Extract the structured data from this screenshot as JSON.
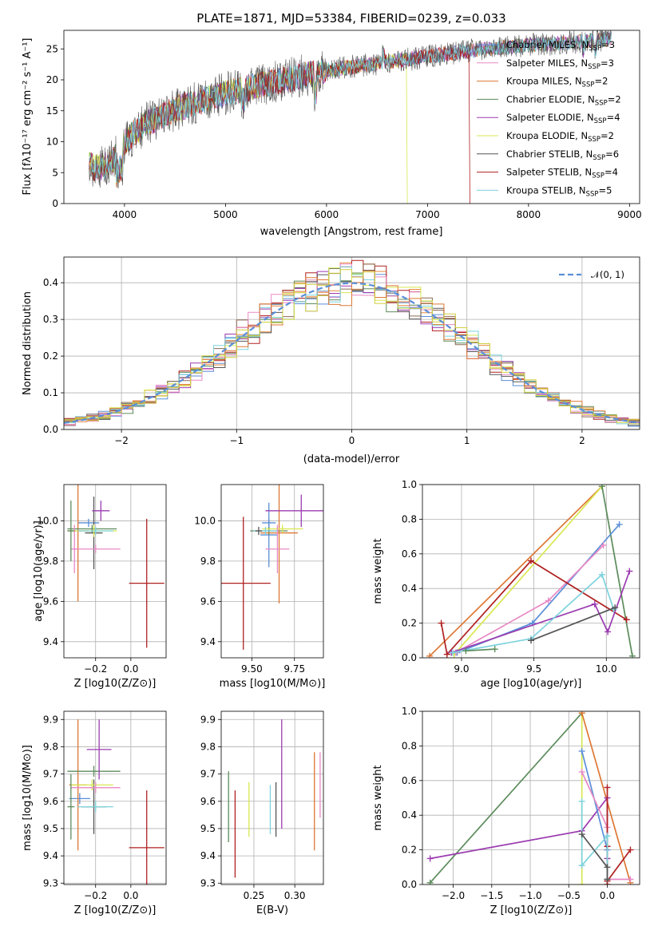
{
  "colors": [
    "#5a8ed8",
    "#e88a3a",
    "#5c8c5c",
    "#b02020",
    "#9b3bb0",
    "#8c6a55",
    "#e88ac5",
    "#555555",
    "#d8e850",
    "#7dd3dd",
    "#dd7733",
    "#cfcf40"
  ],
  "chart_data": [
    {
      "id": "spectrum",
      "type": "line",
      "title": "PLATE=1871, MJD=53384, FIBERID=0239, z=0.033",
      "xlabel": "wavelength [Angstrom, rest frame]",
      "ylabel": "Flux [fλ10⁻¹⁷ erg cm⁻² s⁻¹ A⁻¹]",
      "xlim": [
        3400,
        9100
      ],
      "ylim": [
        0,
        28
      ],
      "xticks": [
        "4000",
        "5000",
        "6000",
        "7000",
        "8000",
        "9000"
      ],
      "yticks": [
        "0",
        "5",
        "10",
        "15",
        "20",
        "25"
      ],
      "grid": false,
      "legend_position": "upper-right",
      "series": [
        {
          "name": "Chabrier MILES, N_SSP=3",
          "color": "#5a8ed8"
        },
        {
          "name": "Salpeter MILES, N_SSP=3",
          "color": "#e88ac5"
        },
        {
          "name": "Kroupa MILES, N_SSP=2",
          "color": "#dd7733"
        },
        {
          "name": "Chabrier ELODIE, N_SSP=2",
          "color": "#5c8c5c"
        },
        {
          "name": "Salpeter ELODIE, N_SSP=4",
          "color": "#9b3bb0"
        },
        {
          "name": "Kroupa ELODIE, N_SSP=2",
          "color": "#d8e850"
        },
        {
          "name": "Chabrier STELIB, N_SSP=6",
          "color": "#555555"
        },
        {
          "name": "Salpeter STELIB, N_SSP=4",
          "color": "#b02020"
        },
        {
          "name": "Kroupa STELIB, N_SSP=5",
          "color": "#7dd3dd"
        }
      ],
      "continuum": {
        "x": [
          3650,
          3700,
          3800,
          3900,
          4000,
          4100,
          4200,
          4400,
          4600,
          4800,
          5000,
          5200,
          5400,
          5600,
          5800,
          6000,
          6200,
          6400,
          6600,
          6800,
          7000,
          7200,
          7400,
          7600,
          7800,
          8000,
          8200,
          8400,
          8600,
          8800
        ],
        "y": [
          6.5,
          5.8,
          6,
          7.2,
          9.8,
          11.5,
          12.8,
          14.5,
          15.8,
          16.8,
          17.8,
          18.6,
          19.4,
          20,
          20.8,
          21.5,
          22,
          22.4,
          22.9,
          23.3,
          23.8,
          24.2,
          24.6,
          25,
          25.3,
          25.6,
          25.8,
          26,
          26.3,
          26.6
        ]
      },
      "dropouts": [
        {
          "series": "Kroupa ELODIE, N_SSP=2",
          "x": 6800
        },
        {
          "series": "Salpeter STELIB, N_SSP=4",
          "x": 7420
        }
      ]
    },
    {
      "id": "residuals",
      "type": "step-histogram",
      "xlabel": "(data-model)/error",
      "ylabel": "Normed distribution",
      "xlim": [
        -2.5,
        2.5
      ],
      "ylim": [
        0,
        0.47
      ],
      "xticks": [
        "−2",
        "−1",
        "0",
        "1",
        "2"
      ],
      "yticks": [
        "0.0",
        "0.1",
        "0.2",
        "0.3",
        "0.4"
      ],
      "grid": true,
      "legend": [
        {
          "name": "𝒩(0, 1)",
          "style": "dashed",
          "color": "#5a8ed8"
        }
      ],
      "reference_curve": {
        "type": "normal",
        "mean": 0,
        "sigma": 1
      },
      "bin_width": 0.1,
      "n_series": 12
    },
    {
      "id": "age-vs-Z",
      "type": "errorbar",
      "xlabel": "Z [log10(Z/Z⊙)]",
      "ylabel": "age [log10(age/yr)]",
      "xlim": [
        -0.38,
        0.2
      ],
      "ylim": [
        9.32,
        10.18
      ],
      "xticks": [
        {
          "v": -0.2,
          "t": "−0.2"
        },
        {
          "v": 0.0,
          "t": "0.0"
        }
      ],
      "yticks": [
        {
          "v": 9.4,
          "t": "9.4"
        },
        {
          "v": 9.6,
          "t": "9.6"
        },
        {
          "v": 9.8,
          "t": "9.8"
        },
        {
          "v": 10.0,
          "t": "10.0"
        }
      ],
      "points": [
        {
          "x": -0.24,
          "y": 9.99,
          "xerr": 0.06,
          "yerr": 0.02,
          "c": "#5a8ed8"
        },
        {
          "x": -0.3,
          "y": 9.95,
          "xerr": 0.06,
          "yerr": 0.35,
          "c": "#dd7733"
        },
        {
          "x": -0.22,
          "y": 9.96,
          "xerr": 0.14,
          "yerr": 0.02,
          "c": "#5c8c5c"
        },
        {
          "x": -0.21,
          "y": 9.94,
          "xerr": 0.05,
          "yerr": 0.18,
          "c": "#555555"
        },
        {
          "x": -0.17,
          "y": 10.05,
          "xerr": 0.05,
          "yerr": 0.05,
          "c": "#9b3bb0"
        },
        {
          "x": -0.21,
          "y": 9.95,
          "xerr": 0.13,
          "yerr": 0.03,
          "c": "#d8e850"
        },
        {
          "x": -0.2,
          "y": 9.95,
          "xerr": 0.1,
          "yerr": 0.02,
          "c": "#7dd3dd"
        },
        {
          "x": -0.2,
          "y": 9.86,
          "xerr": 0.14,
          "yerr": 0.02,
          "c": "#e88ac5"
        },
        {
          "x": -0.32,
          "y": 9.86,
          "xerr": 0.02,
          "yerr": 0.12,
          "c": "#e88ac5"
        },
        {
          "x": -0.34,
          "y": 9.95,
          "xerr": 0.02,
          "yerr": 0.15,
          "c": "#5c8c5c"
        },
        {
          "x": 0.09,
          "y": 9.69,
          "xerr": 0.1,
          "yerr": 0.32,
          "c": "#b02020"
        }
      ]
    },
    {
      "id": "age-vs-mass",
      "type": "errorbar",
      "xlabel": "mass [log10(M/M⊙)]",
      "ylabel": "",
      "xlim": [
        9.32,
        9.92
      ],
      "ylim": [
        9.32,
        10.18
      ],
      "xticks": [
        {
          "v": 9.5,
          "t": "9.50"
        },
        {
          "v": 9.75,
          "t": "9.75"
        }
      ],
      "yticks": [
        {
          "v": 9.4,
          "t": "9.4"
        },
        {
          "v": 9.6,
          "t": "9.6"
        },
        {
          "v": 9.8,
          "t": "9.8"
        },
        {
          "v": 10.0,
          "t": "10.0"
        }
      ],
      "points": [
        {
          "x": 9.6,
          "y": 9.99,
          "xerr": 0.04,
          "yerr": 0.02,
          "c": "#5a8ed8"
        },
        {
          "x": 9.6,
          "y": 9.93,
          "xerr": 0.05,
          "yerr": 0.16,
          "c": "#5a8ed8"
        },
        {
          "x": 9.6,
          "y": 9.95,
          "xerr": 0.11,
          "yerr": 0.02,
          "c": "#5c8c5c"
        },
        {
          "x": 9.66,
          "y": 9.94,
          "xerr": 0.11,
          "yerr": 0.35,
          "c": "#dd7733"
        },
        {
          "x": 9.79,
          "y": 10.05,
          "xerr": 0.21,
          "yerr": 0.08,
          "c": "#9b3bb0"
        },
        {
          "x": 9.68,
          "y": 9.96,
          "xerr": 0.12,
          "yerr": 0.02,
          "c": "#d8e850"
        },
        {
          "x": 9.58,
          "y": 9.95,
          "xerr": 0.07,
          "yerr": 0.02,
          "c": "#7dd3dd"
        },
        {
          "x": 9.65,
          "y": 9.86,
          "xerr": 0.07,
          "yerr": 0.12,
          "c": "#e88ac5"
        },
        {
          "x": 9.54,
          "y": 9.95,
          "xerr": 0.02,
          "yerr": 0.02,
          "c": "#555555"
        },
        {
          "x": 9.45,
          "y": 9.69,
          "xerr": 0.16,
          "yerr": 0.33,
          "c": "#b02020"
        }
      ]
    },
    {
      "id": "weight-vs-age",
      "type": "line",
      "xlabel": "age [log10(age/yr)]",
      "ylabel": "mass weight",
      "xlim": [
        8.73,
        10.23
      ],
      "ylim": [
        0,
        1
      ],
      "xticks": [
        {
          "v": 9.0,
          "t": "9.0"
        },
        {
          "v": 9.5,
          "t": "9.5"
        },
        {
          "v": 10.0,
          "t": "10.0"
        }
      ],
      "yticks": [
        {
          "v": 0,
          "t": "0.0"
        },
        {
          "v": 0.2,
          "t": "0.2"
        },
        {
          "v": 0.4,
          "t": "0.4"
        },
        {
          "v": 0.6,
          "t": "0.6"
        },
        {
          "v": 0.8,
          "t": "0.8"
        },
        {
          "v": 1.0,
          "t": "1.0"
        }
      ],
      "series": [
        {
          "c": "#dd7733",
          "x": [
            8.78,
            9.97
          ],
          "y": [
            0.01,
            0.99
          ]
        },
        {
          "c": "#d8e850",
          "x": [
            8.95,
            9.97
          ],
          "y": [
            0.02,
            0.99
          ]
        },
        {
          "c": "#5c8c5c",
          "x": [
            9.97,
            10.18
          ],
          "y": [
            0.99,
            0.01
          ]
        },
        {
          "c": "#5a8ed8",
          "x": [
            8.97,
            9.49,
            10.09
          ],
          "y": [
            0.03,
            0.2,
            0.77
          ]
        },
        {
          "c": "#e88ac5",
          "x": [
            8.96,
            9.6,
            9.98
          ],
          "y": [
            0.03,
            0.33,
            0.65
          ]
        },
        {
          "c": "#b02020",
          "x": [
            8.86,
            8.9,
            9.48,
            10.14
          ],
          "y": [
            0.2,
            0.02,
            0.56,
            0.22
          ]
        },
        {
          "c": "#9b3bb0",
          "x": [
            8.93,
            9.92,
            10.01,
            10.16
          ],
          "y": [
            0.03,
            0.31,
            0.15,
            0.5
          ]
        },
        {
          "c": "#7dd3dd",
          "x": [
            8.94,
            9.48,
            9.97,
            10.05
          ],
          "y": [
            0.03,
            0.11,
            0.48,
            0.28
          ]
        },
        {
          "c": "#555555",
          "x": [
            9.48,
            10.06
          ],
          "y": [
            0.1,
            0.29
          ]
        },
        {
          "c": "#5c8c5c",
          "x": [
            9.03,
            9.23
          ],
          "y": [
            0.04,
            0.05
          ]
        }
      ]
    },
    {
      "id": "mass-vs-Z",
      "type": "errorbar",
      "xlabel": "Z [log10(Z/Z⊙)]",
      "ylabel": "mass [log10(M/M⊙)]",
      "xlim": [
        -0.38,
        0.2
      ],
      "ylim": [
        9.295,
        9.93
      ],
      "xticks": [
        {
          "v": -0.2,
          "t": "−0.2"
        },
        {
          "v": 0.0,
          "t": "0.0"
        }
      ],
      "yticks": [
        {
          "v": 9.3,
          "t": "9.3"
        },
        {
          "v": 9.4,
          "t": "9.4"
        },
        {
          "v": 9.5,
          "t": "9.5"
        },
        {
          "v": 9.6,
          "t": "9.6"
        },
        {
          "v": 9.7,
          "t": "9.7"
        },
        {
          "v": 9.8,
          "t": "9.8"
        },
        {
          "v": 9.9,
          "t": "9.9"
        }
      ],
      "points": [
        {
          "x": -0.29,
          "y": 9.61,
          "xerr": 0.06,
          "yerr": 0.02,
          "c": "#5a8ed8"
        },
        {
          "x": -0.3,
          "y": 9.66,
          "xerr": 0.05,
          "yerr": 0.24,
          "c": "#dd7733"
        },
        {
          "x": -0.21,
          "y": 9.71,
          "xerr": 0.15,
          "yerr": 0.02,
          "c": "#5c8c5c"
        },
        {
          "x": -0.21,
          "y": 9.58,
          "xerr": 0.07,
          "yerr": 0.1,
          "c": "#555555"
        },
        {
          "x": -0.18,
          "y": 9.79,
          "xerr": 0.07,
          "yerr": 0.11,
          "c": "#9b3bb0"
        },
        {
          "x": -0.22,
          "y": 9.66,
          "xerr": 0.12,
          "yerr": 0.02,
          "c": "#d8e850"
        },
        {
          "x": -0.2,
          "y": 9.58,
          "xerr": 0.1,
          "yerr": 0.02,
          "c": "#7dd3dd"
        },
        {
          "x": -0.2,
          "y": 9.65,
          "xerr": 0.14,
          "yerr": 0.02,
          "c": "#e88ac5"
        },
        {
          "x": -0.34,
          "y": 9.58,
          "xerr": 0.02,
          "yerr": 0.12,
          "c": "#5c8c5c"
        },
        {
          "x": 0.09,
          "y": 9.43,
          "xerr": 0.1,
          "yerr": 0.21,
          "c": "#b02020"
        }
      ]
    },
    {
      "id": "mass-vs-EBV",
      "type": "errorbar",
      "xlabel": "E(B-V)",
      "ylabel": "",
      "xlim": [
        0.21,
        0.335
      ],
      "ylim": [
        9.295,
        9.93
      ],
      "xticks": [
        {
          "v": 0.25,
          "t": "0.25"
        },
        {
          "v": 0.3,
          "t": "0.30"
        }
      ],
      "yticks": [
        {
          "v": 9.3,
          "t": "9.3"
        },
        {
          "v": 9.4,
          "t": "9.4"
        },
        {
          "v": 9.5,
          "t": "9.5"
        },
        {
          "v": 9.6,
          "t": "9.6"
        },
        {
          "v": 9.7,
          "t": "9.7"
        },
        {
          "v": 9.8,
          "t": "9.8"
        },
        {
          "v": 9.9,
          "t": "9.9"
        }
      ],
      "points": [
        {
          "x": 0.219,
          "y": 9.58,
          "xerr": 0,
          "yerr": 0.13,
          "c": "#5c8c5c"
        },
        {
          "x": 0.227,
          "y": 9.48,
          "xerr": 0,
          "yerr": 0.16,
          "c": "#b02020"
        },
        {
          "x": 0.244,
          "y": 9.57,
          "xerr": 0,
          "yerr": 0.1,
          "c": "#d8e850"
        },
        {
          "x": 0.27,
          "y": 9.57,
          "xerr": 0,
          "yerr": 0.09,
          "c": "#7dd3dd"
        },
        {
          "x": 0.277,
          "y": 9.57,
          "xerr": 0,
          "yerr": 0.1,
          "c": "#555555"
        },
        {
          "x": 0.284,
          "y": 9.7,
          "xerr": 0,
          "yerr": 0.2,
          "c": "#9b3bb0"
        },
        {
          "x": 0.324,
          "y": 9.6,
          "xerr": 0,
          "yerr": 0.18,
          "c": "#dd7733"
        },
        {
          "x": 0.331,
          "y": 9.66,
          "xerr": 0,
          "yerr": 0.12,
          "c": "#e88ac5"
        }
      ]
    },
    {
      "id": "weight-vs-Z",
      "type": "line",
      "xlabel": "Z [log10(Z/Z⊙)]",
      "ylabel": "mass weight",
      "xlim": [
        -2.4,
        0.42
      ],
      "ylim": [
        0,
        1
      ],
      "xticks": [
        {
          "v": -2.0,
          "t": "−2.0"
        },
        {
          "v": -1.5,
          "t": "−1.5"
        },
        {
          "v": -1.0,
          "t": "−1.0"
        },
        {
          "v": -0.5,
          "t": "−0.5"
        },
        {
          "v": 0.0,
          "t": "0.0"
        }
      ],
      "yticks": [
        {
          "v": 0,
          "t": "0.0"
        },
        {
          "v": 0.2,
          "t": "0.2"
        },
        {
          "v": 0.4,
          "t": "0.4"
        },
        {
          "v": 0.6,
          "t": "0.6"
        },
        {
          "v": 0.8,
          "t": "0.8"
        },
        {
          "v": 1.0,
          "t": "1.0"
        }
      ],
      "series": [
        {
          "c": "#5c8c5c",
          "x": [
            -2.3,
            -0.33
          ],
          "y": [
            0.01,
            0.99
          ]
        },
        {
          "c": "#d8e850",
          "x": [
            -0.33,
            -0.33
          ],
          "y": [
            0.0,
            0.99
          ]
        },
        {
          "c": "#dd7733",
          "x": [
            -0.33,
            0.3
          ],
          "y": [
            0.99,
            0.01
          ]
        },
        {
          "c": "#9b3bb0",
          "x": [
            -2.3,
            -0.33,
            0.0,
            0.0
          ],
          "y": [
            0.15,
            0.31,
            0.5,
            0.15
          ]
        },
        {
          "c": "#5a8ed8",
          "x": [
            -0.33,
            0.0,
            0.0
          ],
          "y": [
            0.77,
            0.2,
            0.03
          ]
        },
        {
          "c": "#e88ac5",
          "x": [
            -0.33,
            0.0,
            0.0,
            0.3
          ],
          "y": [
            0.65,
            0.33,
            0.03,
            0.03
          ]
        },
        {
          "c": "#b02020",
          "x": [
            0.0,
            0.0,
            0.0,
            0.0,
            0.3
          ],
          "y": [
            0.56,
            0.0,
            0.22,
            0.02,
            0.2
          ]
        },
        {
          "c": "#7dd3dd",
          "x": [
            -0.33,
            -0.33,
            0.0,
            0.0
          ],
          "y": [
            0.48,
            0.11,
            0.28,
            0.03
          ]
        },
        {
          "c": "#555555",
          "x": [
            -0.33,
            0.0,
            0.0
          ],
          "y": [
            0.29,
            0.1,
            0.03
          ]
        }
      ]
    }
  ]
}
